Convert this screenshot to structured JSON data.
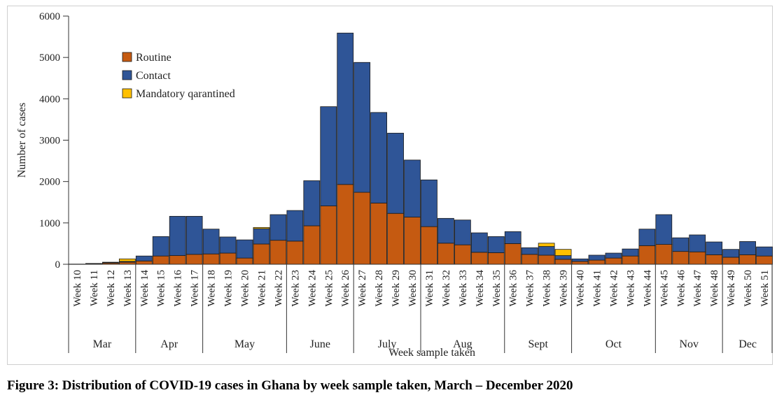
{
  "chart_data": {
    "type": "bar",
    "stacked": true,
    "title": "",
    "xlabel": "Week  sample taken",
    "ylabel": "Number of cases",
    "ylim": [
      0,
      6000
    ],
    "yticks": [
      0,
      1000,
      2000,
      3000,
      4000,
      5000,
      6000
    ],
    "legend_position": "top-left",
    "categories": [
      "Week 10",
      "Week 11",
      "Week 12",
      "Week 13",
      "Week 14",
      "Week 15",
      "Week 16",
      "Week 17",
      "Week 18",
      "Week 19",
      "Week 20",
      "Week 21",
      "Week 22",
      "Week 23",
      "Week 24",
      "Week 25",
      "Week 26",
      "Week 27",
      "Week 28",
      "Week 29",
      "Week 30",
      "Week 31",
      "Week 32",
      "Week 33",
      "Week 34",
      "Week 35",
      "Week 36",
      "Week 37",
      "Week 38",
      "Week 39",
      "Week 40",
      "Week 41",
      "Week 42",
      "Week 43",
      "Week 44",
      "Week 45",
      "Week 46",
      "Week 47",
      "Week 48",
      "Week 49",
      "Week 50",
      "Week 51"
    ],
    "series": [
      {
        "name": "Routine",
        "color": "#c55a11",
        "values": [
          5,
          15,
          30,
          50,
          80,
          200,
          210,
          240,
          250,
          270,
          150,
          490,
          580,
          560,
          930,
          1410,
          1930,
          1740,
          1480,
          1230,
          1140,
          910,
          510,
          470,
          290,
          280,
          500,
          240,
          220,
          120,
          70,
          100,
          150,
          200,
          450,
          480,
          310,
          300,
          230,
          170,
          230,
          200
        ]
      },
      {
        "name": "Contact",
        "color": "#2f5597",
        "values": [
          0,
          5,
          10,
          20,
          120,
          470,
          950,
          920,
          600,
          390,
          440,
          370,
          620,
          740,
          1090,
          2400,
          3660,
          3140,
          2190,
          1940,
          1380,
          1130,
          600,
          600,
          470,
          390,
          290,
          160,
          210,
          90,
          60,
          120,
          120,
          170,
          400,
          720,
          330,
          410,
          310,
          190,
          320,
          220
        ]
      },
      {
        "name": "Mandatory  qarantined",
        "color": "#ffc000",
        "values": [
          0,
          0,
          10,
          60,
          0,
          0,
          0,
          0,
          0,
          0,
          0,
          30,
          0,
          0,
          0,
          0,
          0,
          0,
          0,
          0,
          0,
          0,
          0,
          0,
          0,
          0,
          0,
          0,
          80,
          150,
          0,
          0,
          0,
          0,
          0,
          0,
          0,
          0,
          0,
          0,
          0,
          0
        ]
      }
    ],
    "months": [
      {
        "label": "Mar",
        "start": 0,
        "end": 4
      },
      {
        "label": "Apr",
        "start": 4,
        "end": 8
      },
      {
        "label": "May",
        "start": 8,
        "end": 13
      },
      {
        "label": "June",
        "start": 13,
        "end": 17
      },
      {
        "label": "July",
        "start": 17,
        "end": 21
      },
      {
        "label": "Aug",
        "start": 21,
        "end": 26
      },
      {
        "label": "Sept",
        "start": 26,
        "end": 30
      },
      {
        "label": "Oct",
        "start": 30,
        "end": 35
      },
      {
        "label": "Nov",
        "start": 35,
        "end": 39
      },
      {
        "label": "Dec",
        "start": 39,
        "end": 42
      }
    ]
  },
  "caption": "Figure 3: Distribution of COVID-19 cases in Ghana by week sample taken, March – December 2020"
}
